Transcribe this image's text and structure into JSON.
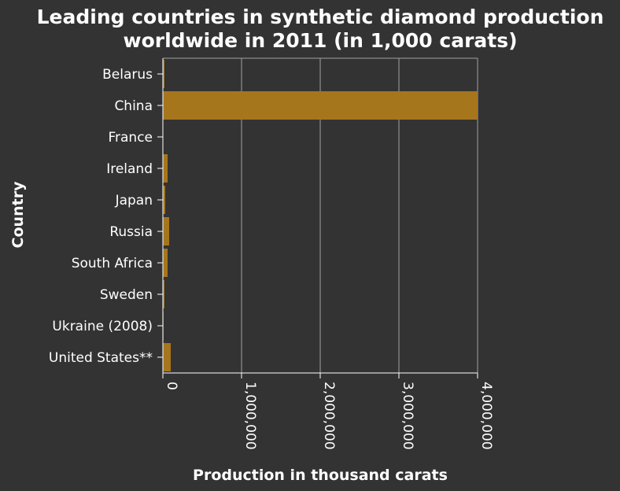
{
  "chart_data": {
    "type": "bar",
    "orientation": "horizontal",
    "title_lines": [
      "Leading countries in synthetic diamond production",
      "worldwide in 2011 (in 1,000 carats)"
    ],
    "xlabel": "Production in thousand carats",
    "ylabel": "Country",
    "categories": [
      "Belarus",
      "China",
      "France",
      "Ireland",
      "Japan",
      "Russia",
      "South Africa",
      "Sweden",
      "Ukraine (2008)",
      "United States**"
    ],
    "values": [
      20000,
      4000000,
      3000,
      60000,
      30000,
      80000,
      60000,
      20000,
      8000,
      100000
    ],
    "xlim": [
      0,
      4000000
    ],
    "xticks": [
      0,
      1000000,
      2000000,
      3000000,
      4000000
    ],
    "xtick_labels": [
      "0",
      "1,000,000",
      "2,000,000",
      "3,000,000",
      "4,000,000"
    ],
    "grid": "vertical",
    "bar_color": "#a6761d",
    "background_color": "#333333",
    "grid_color": "#a0a0a0"
  }
}
